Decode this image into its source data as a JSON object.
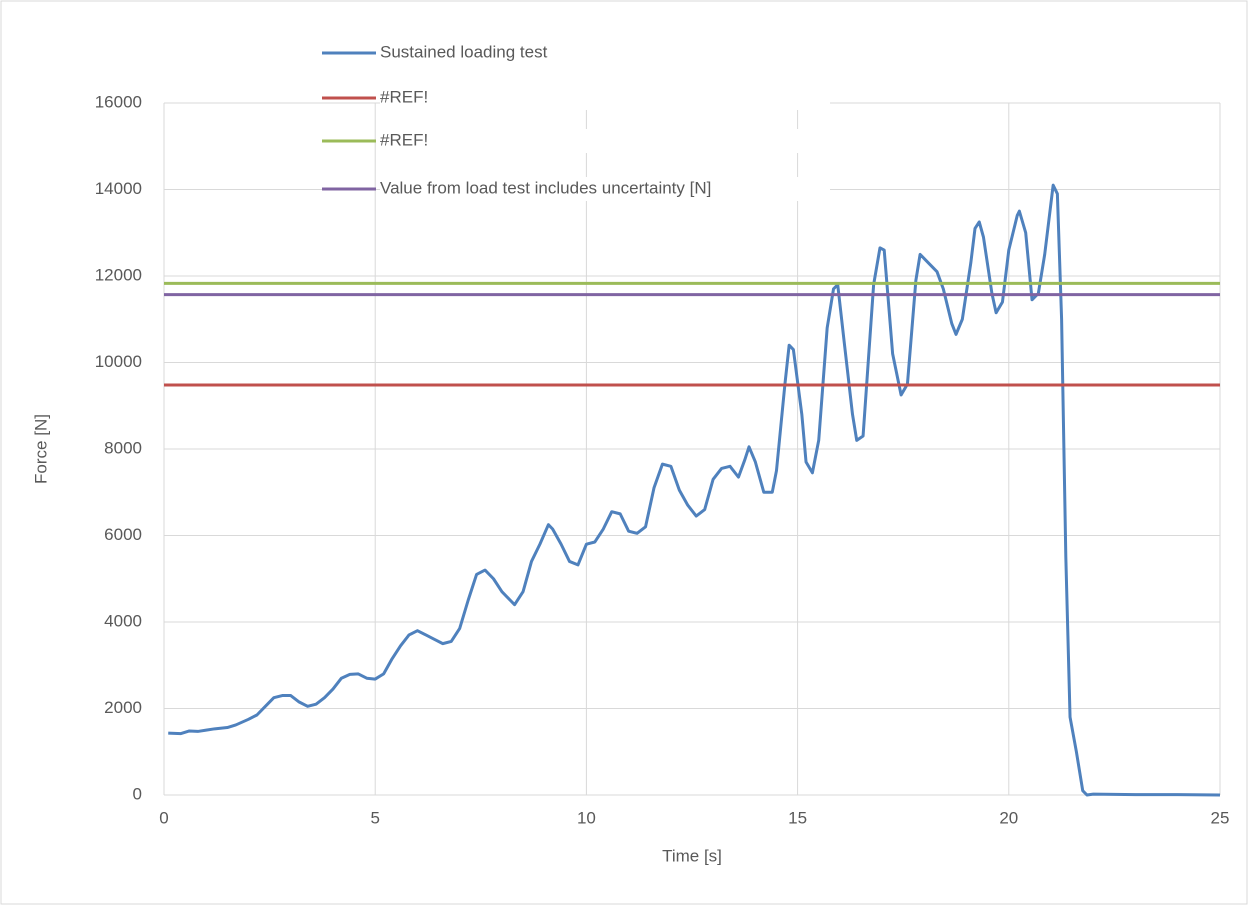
{
  "chart_data": {
    "type": "line",
    "xlabel": "Time [s]",
    "ylabel": "Force [N]",
    "xlim": [
      0,
      25
    ],
    "xticks": [
      0,
      5,
      10,
      15,
      20,
      25
    ],
    "ylim": [
      0,
      16000
    ],
    "yticks": [
      0,
      2000,
      4000,
      6000,
      8000,
      10000,
      12000,
      14000,
      16000
    ],
    "grid": true,
    "legend": "top-left",
    "series": [
      {
        "name": "Sustained loading test",
        "color": "#4f81bd",
        "x": [
          0.1,
          0.4,
          0.6,
          0.8,
          1.0,
          1.2,
          1.5,
          1.7,
          2.0,
          2.2,
          2.4,
          2.6,
          2.8,
          3.0,
          3.2,
          3.4,
          3.6,
          3.8,
          4.0,
          4.2,
          4.4,
          4.6,
          4.8,
          5.0,
          5.2,
          5.4,
          5.6,
          5.8,
          6.0,
          6.2,
          6.4,
          6.6,
          6.8,
          7.0,
          7.2,
          7.4,
          7.6,
          7.8,
          8.0,
          8.2,
          8.3,
          8.5,
          8.7,
          8.9,
          9.1,
          9.2,
          9.4,
          9.6,
          9.8,
          10.0,
          10.2,
          10.4,
          10.6,
          10.8,
          11.0,
          11.2,
          11.4,
          11.6,
          11.8,
          12.0,
          12.2,
          12.4,
          12.6,
          12.8,
          13.0,
          13.2,
          13.4,
          13.6,
          13.75,
          13.85,
          14.0,
          14.2,
          14.4,
          14.5,
          14.7,
          14.8,
          14.9,
          15.1,
          15.2,
          15.35,
          15.5,
          15.7,
          15.85,
          15.95,
          16.1,
          16.3,
          16.4,
          16.55,
          16.8,
          16.95,
          17.05,
          17.25,
          17.45,
          17.6,
          17.8,
          17.9,
          18.1,
          18.3,
          18.45,
          18.65,
          18.75,
          18.9,
          19.1,
          19.2,
          19.3,
          19.4,
          19.6,
          19.7,
          19.85,
          20.0,
          20.2,
          20.25,
          20.4,
          20.55,
          20.7,
          20.85,
          20.95,
          21.05,
          21.15,
          21.25,
          21.35,
          21.45,
          21.6,
          21.75,
          21.85,
          22.0,
          23.0,
          24.0,
          25.0
        ],
        "values": [
          1430,
          1420,
          1480,
          1470,
          1500,
          1530,
          1560,
          1620,
          1750,
          1850,
          2050,
          2250,
          2300,
          2300,
          2150,
          2050,
          2100,
          2250,
          2450,
          2700,
          2790,
          2800,
          2700,
          2680,
          2800,
          3150,
          3450,
          3700,
          3800,
          3700,
          3600,
          3500,
          3550,
          3850,
          4500,
          5100,
          5200,
          5000,
          4700,
          4500,
          4400,
          4700,
          5400,
          5800,
          6250,
          6150,
          5800,
          5400,
          5320,
          5800,
          5850,
          6150,
          6550,
          6500,
          6100,
          6050,
          6200,
          7100,
          7650,
          7600,
          7050,
          6700,
          6450,
          6600,
          7300,
          7550,
          7600,
          7350,
          7750,
          8050,
          7700,
          7000,
          7000,
          7500,
          9500,
          10400,
          10300,
          8800,
          7700,
          7450,
          8200,
          10800,
          11700,
          11800,
          10500,
          8800,
          8200,
          8300,
          11800,
          12650,
          12600,
          10200,
          9250,
          9500,
          11900,
          12500,
          12300,
          12100,
          11700,
          10900,
          10650,
          11000,
          12300,
          13100,
          13250,
          12900,
          11600,
          11150,
          11400,
          12600,
          13400,
          13500,
          13000,
          11450,
          11600,
          12500,
          13300,
          14100,
          13900,
          11000,
          5500,
          1800,
          1000,
          100,
          0,
          20,
          10,
          10,
          0
        ]
      },
      {
        "name": "#REF!",
        "color": "#c0504d",
        "x": [
          0,
          25
        ],
        "values": [
          9480,
          9480
        ]
      },
      {
        "name": "#REF!",
        "color": "#9bbb59",
        "x": [
          0,
          25
        ],
        "values": [
          11830,
          11830
        ]
      },
      {
        "name": "Value from load test includes uncertainty [N]",
        "color": "#8064a2",
        "x": [
          0,
          25
        ],
        "values": [
          11570,
          11570
        ]
      }
    ]
  }
}
